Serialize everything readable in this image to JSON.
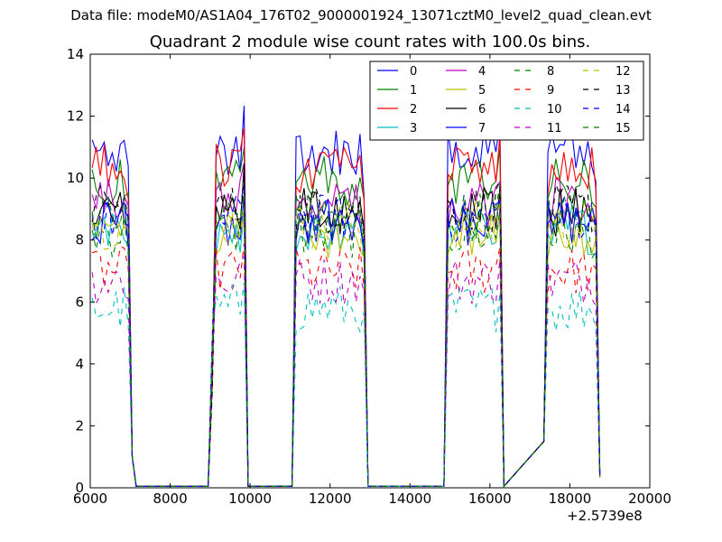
{
  "figure": {
    "suptitle": "Data file: modeM0/AS1A04_176T02_9000001924_13071cztM0_level2_quad_clean.evt",
    "title": "Quadrant 2 module wise count rates with 100.0s bins.",
    "x_offset_label": "+2.5739e8"
  },
  "chart_data": {
    "type": "line",
    "xlabel": "",
    "ylabel": "",
    "x_offset": 257390000,
    "xlim": [
      6000,
      20000
    ],
    "ylim": [
      0,
      14
    ],
    "x_ticks": [
      "6000",
      "8000",
      "10000",
      "12000",
      "14000",
      "16000",
      "18000",
      "20000"
    ],
    "y_ticks": [
      "0",
      "2",
      "4",
      "6",
      "8",
      "10",
      "12",
      "14"
    ],
    "legend_placement": "top-right",
    "bin_size_s": 100,
    "data_segments": [
      {
        "start": 6050,
        "end": 6850
      },
      {
        "start": 9150,
        "end": 9750
      },
      {
        "start": 11150,
        "end": 12750
      },
      {
        "start": 14950,
        "end": 16150
      },
      {
        "start": 17450,
        "end": 18550
      }
    ],
    "gap_points": [
      [
        7050,
        1.0
      ],
      [
        7150,
        0.05
      ],
      [
        8950,
        0.05
      ],
      [
        9050,
        3.0
      ],
      [
        9950,
        0.05
      ],
      [
        11050,
        0.05
      ],
      [
        12950,
        0.05
      ],
      [
        14850,
        0.05
      ],
      [
        16350,
        0.05
      ],
      [
        17350,
        1.5
      ],
      [
        18750,
        0.3
      ]
    ],
    "series": [
      {
        "name": "0",
        "color": "#0000ff",
        "dash": "solid",
        "mean": 10.8
      },
      {
        "name": "1",
        "color": "#008000",
        "dash": "solid",
        "mean": 9.9
      },
      {
        "name": "2",
        "color": "#ff0000",
        "dash": "solid",
        "mean": 10.3
      },
      {
        "name": "3",
        "color": "#00bfbf",
        "dash": "solid",
        "mean": 8.3
      },
      {
        "name": "4",
        "color": "#bf00bf",
        "dash": "solid",
        "mean": 9.2
      },
      {
        "name": "5",
        "color": "#bfbf00",
        "dash": "solid",
        "mean": 8.1
      },
      {
        "name": "6",
        "color": "#000000",
        "dash": "solid",
        "mean": 8.9
      },
      {
        "name": "7",
        "color": "#0000ff",
        "dash": "solid",
        "mean": 8.6
      },
      {
        "name": "8",
        "color": "#008000",
        "dash": "dashed",
        "mean": 8.2
      },
      {
        "name": "9",
        "color": "#ff0000",
        "dash": "dashed",
        "mean": 7.0
      },
      {
        "name": "10",
        "color": "#00bfbf",
        "dash": "dashed",
        "mean": 5.8
      },
      {
        "name": "11",
        "color": "#bf00bf",
        "dash": "dashed",
        "mean": 6.7
      },
      {
        "name": "12",
        "color": "#bfbf00",
        "dash": "dashed",
        "mean": 8.5
      },
      {
        "name": "13",
        "color": "#000000",
        "dash": "dashed",
        "mean": 9.0
      },
      {
        "name": "14",
        "color": "#0000ff",
        "dash": "dashed",
        "mean": 8.7
      },
      {
        "name": "15",
        "color": "#008000",
        "dash": "dashed",
        "mean": 8.8
      }
    ]
  }
}
